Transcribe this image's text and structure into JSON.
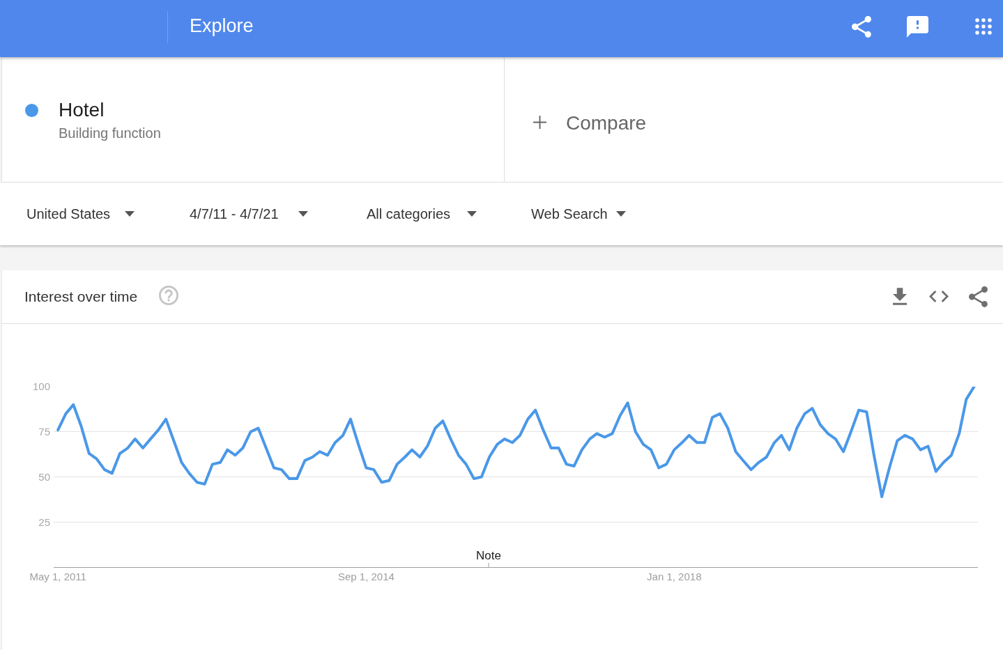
{
  "chart_data": {
    "type": "line",
    "title": "Interest over time",
    "x": [
      "2011-05",
      "2011-06",
      "2011-07",
      "2011-08",
      "2011-09",
      "2011-10",
      "2011-11",
      "2011-12",
      "2012-01",
      "2012-02",
      "2012-03",
      "2012-04",
      "2012-05",
      "2012-06",
      "2012-07",
      "2012-08",
      "2012-09",
      "2012-10",
      "2012-11",
      "2012-12",
      "2013-01",
      "2013-02",
      "2013-03",
      "2013-04",
      "2013-05",
      "2013-06",
      "2013-07",
      "2013-08",
      "2013-09",
      "2013-10",
      "2013-11",
      "2013-12",
      "2014-01",
      "2014-02",
      "2014-03",
      "2014-04",
      "2014-05",
      "2014-06",
      "2014-07",
      "2014-08",
      "2014-09",
      "2014-10",
      "2014-11",
      "2014-12",
      "2015-01",
      "2015-02",
      "2015-03",
      "2015-04",
      "2015-05",
      "2015-06",
      "2015-07",
      "2015-08",
      "2015-09",
      "2015-10",
      "2015-11",
      "2015-12",
      "2016-01",
      "2016-02",
      "2016-03",
      "2016-04",
      "2016-05",
      "2016-06",
      "2016-07",
      "2016-08",
      "2016-09",
      "2016-10",
      "2016-11",
      "2016-12",
      "2017-01",
      "2017-02",
      "2017-03",
      "2017-04",
      "2017-05",
      "2017-06",
      "2017-07",
      "2017-08",
      "2017-09",
      "2017-10",
      "2017-11",
      "2017-12",
      "2018-01",
      "2018-02",
      "2018-03",
      "2018-04",
      "2018-05",
      "2018-06",
      "2018-07",
      "2018-08",
      "2018-09",
      "2018-10",
      "2018-11",
      "2018-12",
      "2019-01",
      "2019-02",
      "2019-03",
      "2019-04",
      "2019-05",
      "2019-06",
      "2019-07",
      "2019-08",
      "2019-09",
      "2019-10",
      "2019-11",
      "2019-12",
      "2020-01",
      "2020-02",
      "2020-03",
      "2020-04",
      "2020-05",
      "2020-06",
      "2020-07",
      "2020-08",
      "2020-09",
      "2020-10",
      "2020-11",
      "2020-12",
      "2021-01",
      "2021-02",
      "2021-03",
      "2021-04"
    ],
    "series": [
      {
        "name": "Hotel",
        "color": "#4a98e8",
        "values": [
          76,
          85,
          90,
          78,
          63,
          60,
          54,
          52,
          63,
          66,
          71,
          66,
          71,
          76,
          82,
          70,
          58,
          52,
          47,
          46,
          57,
          58,
          65,
          62,
          66,
          75,
          77,
          66,
          55,
          54,
          49,
          49,
          59,
          61,
          64,
          62,
          69,
          73,
          82,
          68,
          55,
          54,
          47,
          48,
          57,
          61,
          65,
          61,
          67,
          77,
          81,
          71,
          62,
          57,
          49,
          50,
          61,
          68,
          71,
          69,
          73,
          82,
          87,
          76,
          66,
          66,
          57,
          56,
          65,
          71,
          74,
          72,
          74,
          84,
          91,
          75,
          68,
          65,
          55,
          57,
          65,
          69,
          73,
          69,
          69,
          83,
          85,
          77,
          64,
          59,
          54,
          58,
          61,
          69,
          73,
          65,
          77,
          85,
          88,
          79,
          74,
          71,
          64,
          75,
          87,
          86,
          62,
          39,
          55,
          70,
          73,
          71,
          65,
          67,
          53,
          58,
          62,
          74,
          93,
          100
        ]
      }
    ],
    "xlim": [
      "2011-04-14",
      "2021-04-16"
    ],
    "xticks": [
      {
        "value": "2011-05-01",
        "label": "May 1, 2011"
      },
      {
        "value": "2014-09-01",
        "label": "Sep 1, 2014"
      },
      {
        "value": "2018-01-01",
        "label": "Jan 1, 2018"
      }
    ],
    "ylim": [
      0,
      100
    ],
    "yticks": [
      25,
      50,
      75,
      100
    ],
    "grid": "y",
    "legend": "top left",
    "line_style": "solid",
    "annotations": [
      "Explore",
      "Building function",
      "Compare",
      "United States",
      "4/7/11 - 4/7/21",
      "All categories",
      "Web Search",
      "Note"
    ]
  }
}
